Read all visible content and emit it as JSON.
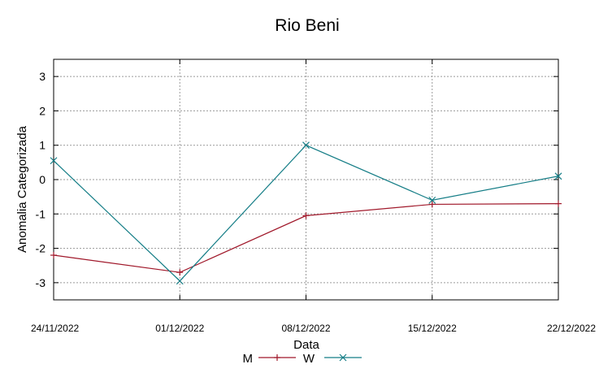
{
  "chart_data": {
    "type": "line",
    "title": "Rio Beni",
    "xlabel": "Data",
    "ylabel": "Anomalia Categorizada",
    "x": [
      "24/11/2022",
      "01/12/2022",
      "08/12/2022",
      "15/12/2022",
      "22/12/2022"
    ],
    "ylim": [
      -3.5,
      3.5
    ],
    "yticks": [
      -3,
      -2,
      -1,
      0,
      1,
      2,
      3
    ],
    "grid": true,
    "legend_position": "bottom-center",
    "series": [
      {
        "name": "M",
        "color": "#a0182a",
        "marker": "plus",
        "values": [
          -2.2,
          -2.7,
          -1.05,
          -0.72,
          -0.7
        ]
      },
      {
        "name": "W",
        "color": "#147d86",
        "marker": "cross",
        "values": [
          0.55,
          -2.95,
          1.0,
          -0.6,
          0.1
        ]
      }
    ]
  }
}
